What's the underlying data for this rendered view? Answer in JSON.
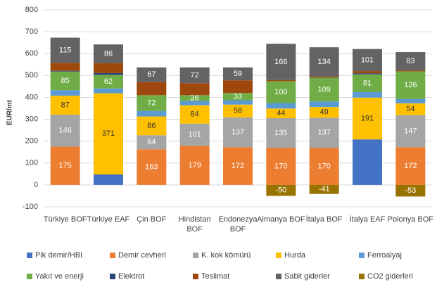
{
  "chart_data": {
    "type": "stacked_bar",
    "y_label": "EUR/mt",
    "categories": [
      "Türkiye BOF",
      "Türkiye EAF",
      "Çin BOF",
      "Hindistan BOF",
      "Endonezya BOF",
      "Almanya BOF",
      "İtalya BOF",
      "İtalya EAF",
      "Polonya BOF"
    ],
    "series": [
      {
        "name": "Pik demir/HBI",
        "color": "#4472c4",
        "data_labels": false,
        "values": [
          0,
          48,
          0,
          0,
          0,
          0,
          0,
          208,
          0
        ]
      },
      {
        "name": "Demir cevheri",
        "color": "#ed7d31",
        "data_labels": true,
        "label_color": "#ffffff",
        "values": [
          175,
          0,
          163,
          179,
          172,
          170,
          170,
          0,
          172
        ]
      },
      {
        "name": "K. kok kömürü",
        "color": "#a5a5a5",
        "data_labels": true,
        "label_color": "#ffffff",
        "values": [
          146,
          0,
          64,
          101,
          137,
          135,
          137,
          0,
          147
        ]
      },
      {
        "name": "Hurda",
        "color": "#ffc000",
        "data_labels": true,
        "label_color": "#333333",
        "values": [
          87,
          371,
          86,
          84,
          58,
          44,
          49,
          191,
          54
        ]
      },
      {
        "name": "Ferroalyaj",
        "color": "#5b9bd5",
        "data_labels": false,
        "values": [
          25,
          22,
          25,
          20,
          20,
          25,
          25,
          25,
          20
        ]
      },
      {
        "name": "Yakıt ve enerji",
        "color": "#70ad47",
        "data_labels": true,
        "label_color": "#ffffff",
        "values": [
          85,
          62,
          72,
          26,
          33,
          100,
          109,
          81,
          126
        ]
      },
      {
        "name": "Elektrot",
        "color": "#264478",
        "data_labels": false,
        "values": [
          3,
          8,
          0,
          0,
          0,
          0,
          0,
          5,
          0
        ]
      },
      {
        "name": "Teslimat",
        "color": "#9e480e",
        "data_labels": false,
        "values": [
          37,
          45,
          60,
          55,
          58,
          5,
          5,
          10,
          5
        ]
      },
      {
        "name": "Sabit giderler",
        "color": "#636363",
        "data_labels": true,
        "label_color": "#ffffff",
        "values": [
          115,
          86,
          67,
          72,
          59,
          166,
          134,
          101,
          83
        ]
      },
      {
        "name": "CO2 giderleri",
        "color": "#997300",
        "data_labels": true,
        "label_color": "#ffffff",
        "values": [
          0,
          0,
          0,
          0,
          0,
          -50,
          -41,
          0,
          -53
        ]
      }
    ],
    "ylim": [
      -100,
      800
    ],
    "yticks": [
      -100,
      0,
      100,
      200,
      300,
      400,
      500,
      600,
      700,
      800
    ],
    "grid": true
  }
}
